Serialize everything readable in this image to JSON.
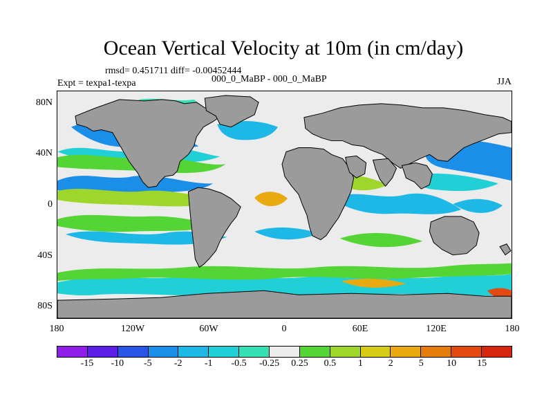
{
  "title": "Ocean Vertical Velocity at 10m (in cm/day)",
  "stats": "rmsd= 0.451711 diff= -0.00452444",
  "expt": "Expt = texpa1-texpa",
  "experiment": "000_0_MaBP - 000_0_MaBP",
  "season": "JJA",
  "y_axis_labels": [
    "80N",
    "40N",
    "0",
    "40S",
    "80S"
  ],
  "x_axis_labels": [
    "180",
    "120W",
    "60W",
    "0",
    "60E",
    "120E",
    "180"
  ],
  "colorbar": {
    "labels": [
      "-15",
      "-10",
      "-5",
      "-2",
      "-1",
      "-0.5",
      "-0.25",
      "0.25",
      "0.5",
      "1",
      "2",
      "5",
      "10",
      "15"
    ],
    "colors": [
      "#8f1fe8",
      "#5b1ee6",
      "#2a56e8",
      "#1b8ee8",
      "#1eb8e6",
      "#20d0d6",
      "#36e0b4",
      "#ececec",
      "#55d436",
      "#9fd62c",
      "#d6cc18",
      "#e8aa10",
      "#e47c0e",
      "#e24a12",
      "#d6260e"
    ]
  },
  "map": {
    "land_color": "#9b9b9b",
    "background_color": "#ececec",
    "anomaly_colors": {
      "blue": "#1b8ee8",
      "cyan": "#1eb8e6",
      "turquoise": "#36e0b4",
      "green": "#55d436",
      "yellow_green": "#9fd62c",
      "yellow": "#d6cc18",
      "orange": "#e8aa10",
      "red": "#e24a12"
    }
  }
}
